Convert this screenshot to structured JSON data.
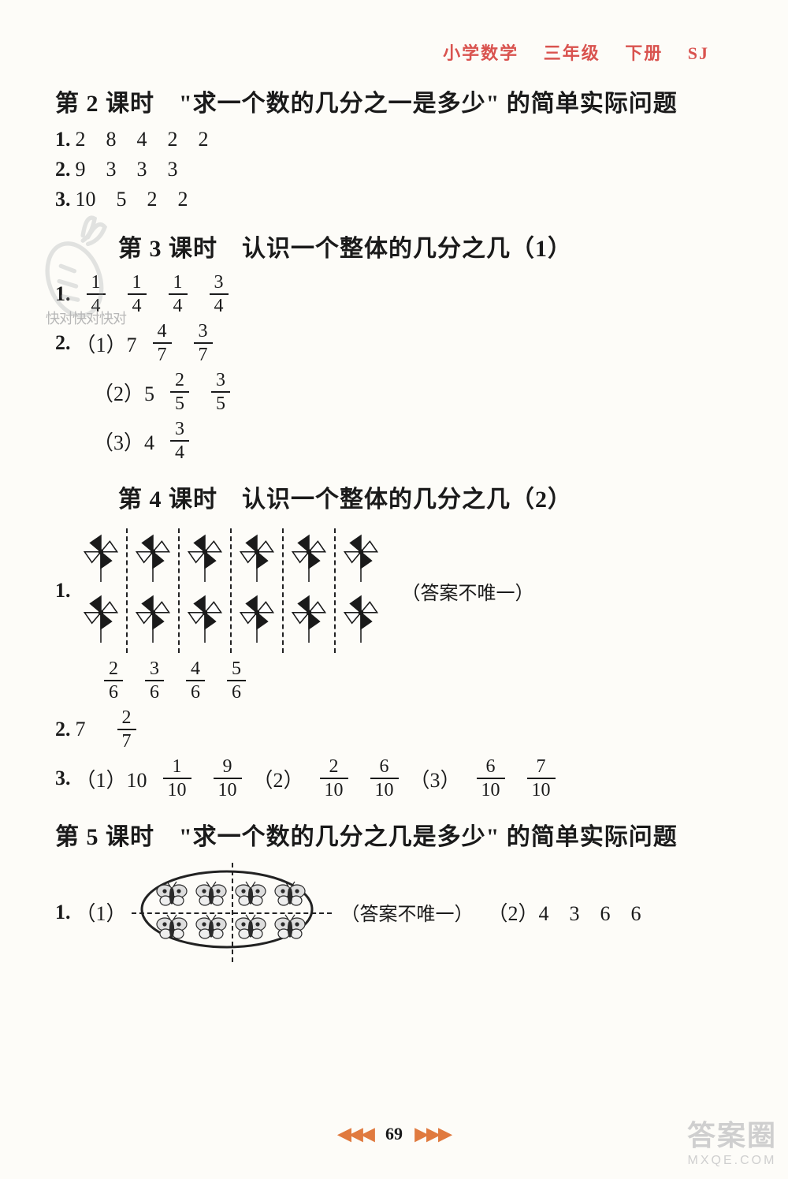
{
  "header": {
    "subject": "小学数学",
    "grade": "三年级",
    "volume": "下册",
    "code": "SJ"
  },
  "lessons": {
    "l2": {
      "title": "第 2 课时　\"求一个数的几分之一是多少\" 的简单实际问题",
      "a1": {
        "q": "1.",
        "vals": [
          "2",
          "8",
          "4",
          "2",
          "2"
        ]
      },
      "a2": {
        "q": "2.",
        "vals": [
          "9",
          "3",
          "3",
          "3"
        ]
      },
      "a3": {
        "q": "3.",
        "vals": [
          "10",
          "5",
          "2",
          "2"
        ]
      }
    },
    "l3": {
      "title": "第 3 课时　认识一个整体的几分之几（1）",
      "a1": {
        "q": "1.",
        "fracs": [
          [
            "1",
            "4"
          ],
          [
            "1",
            "4"
          ],
          [
            "1",
            "4"
          ],
          [
            "3",
            "4"
          ]
        ]
      },
      "a2_1": {
        "q": "2.",
        "paren": "（1）7",
        "fracs": [
          [
            "4",
            "7"
          ],
          [
            "3",
            "7"
          ]
        ]
      },
      "a2_2": {
        "paren": "（2）5",
        "fracs": [
          [
            "2",
            "5"
          ],
          [
            "3",
            "5"
          ]
        ]
      },
      "a2_3": {
        "paren": "（3）4",
        "fracs": [
          [
            "3",
            "4"
          ]
        ]
      }
    },
    "l4": {
      "title": "第 4 课时　认识一个整体的几分之几（2）",
      "a1": {
        "q": "1.",
        "note": "（答案不唯一）",
        "fracs": [
          [
            "2",
            "6"
          ],
          [
            "3",
            "6"
          ],
          [
            "4",
            "6"
          ],
          [
            "5",
            "6"
          ]
        ]
      },
      "a2": {
        "q": "2.",
        "val": "7",
        "fracs": [
          [
            "2",
            "7"
          ]
        ]
      },
      "a3": {
        "q": "3.",
        "parts": [
          {
            "paren": "（1）10",
            "fracs": [
              [
                "1",
                "10"
              ],
              [
                "9",
                "10"
              ]
            ]
          },
          {
            "paren": "（2）",
            "fracs": [
              [
                "2",
                "10"
              ],
              [
                "6",
                "10"
              ]
            ]
          },
          {
            "paren": "（3）",
            "fracs": [
              [
                "6",
                "10"
              ],
              [
                "7",
                "10"
              ]
            ]
          }
        ]
      },
      "pinwheel": {
        "cols": 6,
        "rows": 2,
        "color": "#1a1a1a"
      }
    },
    "l5": {
      "title": "第 5 课时　\"求一个数的几分之几是多少\" 的简单实际问题",
      "a1": {
        "q": "1.",
        "p1": "（1）",
        "note": "（答案不唯一）",
        "p2": "（2）4　3　6　6"
      },
      "butterfly": {
        "cols": 4,
        "rows": 2,
        "color": "#2a2a2a"
      }
    }
  },
  "footer": {
    "page": "69"
  },
  "watermark": {
    "top": "快对快对快对",
    "corner_big": "答案圈",
    "corner_small": "MXQE.COM"
  },
  "colors": {
    "accent": "#d9534f",
    "text": "#1a1a1a",
    "footer_arrow": "#e07a3f"
  }
}
